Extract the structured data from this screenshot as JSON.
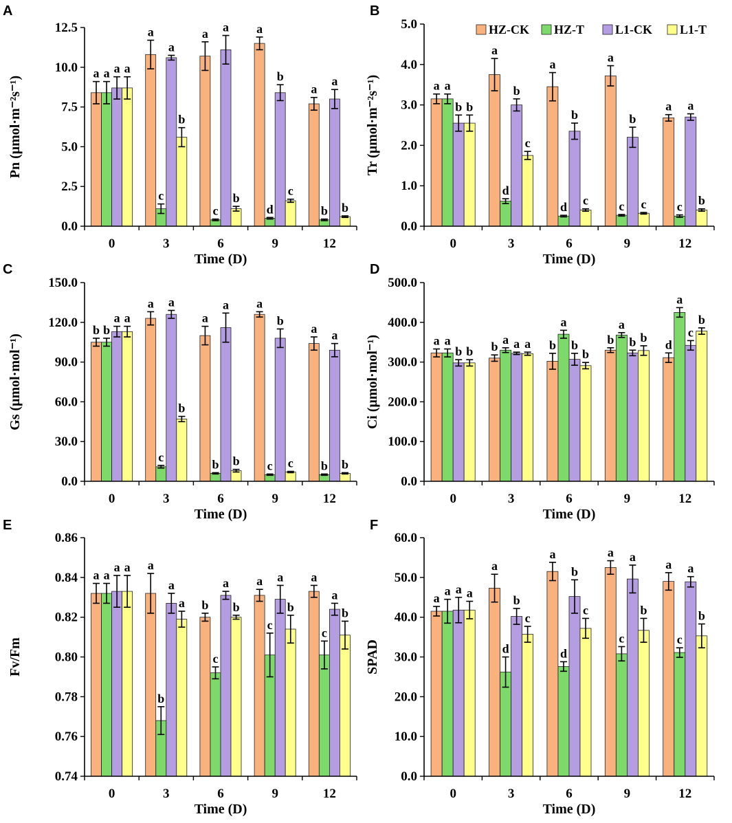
{
  "figure": {
    "legend": [
      {
        "name": "HZ-CK",
        "color": "#F9B27E"
      },
      {
        "name": "HZ-T",
        "color": "#7CD96A"
      },
      {
        "name": "L1-CK",
        "color": "#B49DE0"
      },
      {
        "name": "L1-T",
        "color": "#FFFF8C"
      }
    ]
  },
  "chart_data": [
    {
      "panel": "A",
      "type": "bar",
      "ylabel": "Pn (μmol·m⁻²s⁻¹)",
      "xlabel": "Time (D)",
      "categories": [
        "0",
        "3",
        "6",
        "9",
        "12"
      ],
      "ylim": [
        0,
        12.5
      ],
      "yticks": [
        "0.0",
        "2.5",
        "5.0",
        "7.5",
        "10.0",
        "12.5"
      ],
      "series": [
        {
          "name": "HZ-CK",
          "values": [
            8.4,
            10.8,
            10.7,
            11.5,
            7.7
          ],
          "errors": [
            0.7,
            0.9,
            0.9,
            0.4,
            0.4
          ],
          "letters": [
            "a",
            "a",
            "a",
            "a",
            "a"
          ]
        },
        {
          "name": "HZ-T",
          "values": [
            8.4,
            1.1,
            0.4,
            0.5,
            0.4
          ],
          "errors": [
            0.7,
            0.3,
            0.05,
            0.05,
            0.05
          ],
          "letters": [
            "a",
            "c",
            "c",
            "d",
            "b"
          ]
        },
        {
          "name": "L1-CK",
          "values": [
            8.7,
            10.6,
            11.1,
            8.4,
            8.0
          ],
          "errors": [
            0.7,
            0.15,
            0.9,
            0.5,
            0.6
          ],
          "letters": [
            "a",
            "a",
            "a",
            "b",
            "a"
          ]
        },
        {
          "name": "L1-T",
          "values": [
            8.7,
            5.6,
            1.1,
            1.6,
            0.6
          ],
          "errors": [
            0.7,
            0.6,
            0.15,
            0.1,
            0.05
          ],
          "letters": [
            "a",
            "b",
            "b",
            "c",
            "b"
          ]
        }
      ]
    },
    {
      "panel": "B",
      "type": "bar",
      "ylabel": "Tr (μmol·m⁻²s⁻¹)",
      "xlabel": "Time (D)",
      "categories": [
        "0",
        "3",
        "6",
        "9",
        "12"
      ],
      "ylim": [
        0,
        5.0
      ],
      "yticks": [
        "0.0",
        "1.0",
        "2.0",
        "3.0",
        "4.0",
        "5.0"
      ],
      "series": [
        {
          "name": "HZ-CK",
          "values": [
            3.15,
            3.75,
            3.45,
            3.72,
            2.68
          ],
          "errors": [
            0.12,
            0.4,
            0.35,
            0.25,
            0.08
          ],
          "letters": [
            "a",
            "a",
            "a",
            "a",
            "a"
          ]
        },
        {
          "name": "HZ-T",
          "values": [
            3.15,
            0.62,
            0.25,
            0.27,
            0.25
          ],
          "errors": [
            0.12,
            0.06,
            0.02,
            0.02,
            0.03
          ],
          "letters": [
            "a",
            "d",
            "d",
            "c",
            "c"
          ]
        },
        {
          "name": "L1-CK",
          "values": [
            2.55,
            3.0,
            2.35,
            2.2,
            2.7
          ],
          "errors": [
            0.2,
            0.15,
            0.2,
            0.25,
            0.08
          ],
          "letters": [
            "b",
            "b",
            "b",
            "b",
            "a"
          ]
        },
        {
          "name": "L1-T",
          "values": [
            2.55,
            1.75,
            0.4,
            0.32,
            0.4
          ],
          "errors": [
            0.2,
            0.1,
            0.03,
            0.02,
            0.03
          ],
          "letters": [
            "b",
            "c",
            "c",
            "c",
            "b"
          ]
        }
      ]
    },
    {
      "panel": "C",
      "type": "bar",
      "ylabel": "Gs (μmol·mol⁻¹)",
      "xlabel": "Time (D)",
      "categories": [
        "0",
        "3",
        "6",
        "9",
        "12"
      ],
      "ylim": [
        0,
        150.0
      ],
      "yticks": [
        "0.0",
        "30.0",
        "60.0",
        "90.0",
        "120.0",
        "150.0"
      ],
      "series": [
        {
          "name": "HZ-CK",
          "values": [
            105,
            123,
            110,
            126,
            104
          ],
          "errors": [
            3,
            5,
            7,
            2,
            5
          ],
          "letters": [
            "b",
            "a",
            "a",
            "a",
            "a"
          ]
        },
        {
          "name": "HZ-T",
          "values": [
            105,
            11,
            6,
            5,
            5
          ],
          "errors": [
            3,
            1,
            0.5,
            0.5,
            0.5
          ],
          "letters": [
            "b",
            "c",
            "b",
            "c",
            "b"
          ]
        },
        {
          "name": "L1-CK",
          "values": [
            113,
            126,
            116,
            108,
            99
          ],
          "errors": [
            4,
            3,
            11,
            7,
            5
          ],
          "letters": [
            "a",
            "a",
            "a",
            "b",
            "a"
          ]
        },
        {
          "name": "L1-T",
          "values": [
            113,
            47,
            8,
            7,
            6
          ],
          "errors": [
            4,
            2,
            1,
            0.5,
            0.5
          ],
          "letters": [
            "a",
            "b",
            "b",
            "c",
            "b"
          ]
        }
      ]
    },
    {
      "panel": "D",
      "type": "bar",
      "ylabel": "Ci (μmol·mol⁻¹)",
      "xlabel": "Time (D)",
      "categories": [
        "0",
        "3",
        "6",
        "9",
        "12"
      ],
      "ylim": [
        0,
        500.0
      ],
      "yticks": [
        "0.0",
        "100.0",
        "200.0",
        "300.0",
        "400.0",
        "500.0"
      ],
      "series": [
        {
          "name": "HZ-CK",
          "values": [
            323,
            310,
            302,
            330,
            311
          ],
          "errors": [
            10,
            8,
            20,
            6,
            12
          ],
          "letters": [
            "a",
            "b",
            "b",
            "b",
            "d"
          ]
        },
        {
          "name": "HZ-T",
          "values": [
            323,
            330,
            370,
            368,
            425
          ],
          "errors": [
            10,
            6,
            10,
            6,
            12
          ],
          "letters": [
            "a",
            "a",
            "a",
            "a",
            "a"
          ]
        },
        {
          "name": "L1-CK",
          "values": [
            298,
            322,
            307,
            323,
            342
          ],
          "errors": [
            8,
            3,
            15,
            7,
            12
          ],
          "letters": [
            "b",
            "a",
            "b",
            "b",
            "c"
          ]
        },
        {
          "name": "L1-T",
          "values": [
            298,
            321,
            291,
            329,
            378
          ],
          "errors": [
            8,
            4,
            8,
            12,
            8
          ],
          "letters": [
            "b",
            "a",
            "b",
            "b",
            "b"
          ]
        }
      ]
    },
    {
      "panel": "E",
      "type": "bar",
      "ylabel": "Fv/Fm",
      "xlabel": "Time (D)",
      "categories": [
        "0",
        "3",
        "6",
        "9",
        "12"
      ],
      "ylim": [
        0.74,
        0.86
      ],
      "yticks": [
        "0.74",
        "0.76",
        "0.78",
        "0.80",
        "0.82",
        "0.84",
        "0.86"
      ],
      "series": [
        {
          "name": "HZ-CK",
          "values": [
            0.832,
            0.832,
            0.82,
            0.831,
            0.833
          ],
          "errors": [
            0.005,
            0.01,
            0.002,
            0.003,
            0.003
          ],
          "letters": [
            "a",
            "a",
            "b",
            "a",
            "a"
          ]
        },
        {
          "name": "HZ-T",
          "values": [
            0.832,
            0.768,
            0.792,
            0.801,
            0.801
          ],
          "errors": [
            0.005,
            0.007,
            0.003,
            0.011,
            0.007
          ],
          "letters": [
            "a",
            "b",
            "c",
            "c",
            "c"
          ]
        },
        {
          "name": "L1-CK",
          "values": [
            0.833,
            0.827,
            0.831,
            0.829,
            0.824
          ],
          "errors": [
            0.008,
            0.005,
            0.002,
            0.007,
            0.003
          ],
          "letters": [
            "a",
            "a",
            "a",
            "a",
            "a"
          ]
        },
        {
          "name": "L1-T",
          "values": [
            0.833,
            0.819,
            0.82,
            0.814,
            0.811
          ],
          "errors": [
            0.008,
            0.004,
            0.001,
            0.007,
            0.007
          ],
          "letters": [
            "a",
            "a",
            "b",
            "b",
            "b"
          ]
        }
      ]
    },
    {
      "panel": "F",
      "type": "bar",
      "ylabel": "SPAD",
      "xlabel": "Time (D)",
      "categories": [
        "0",
        "3",
        "6",
        "9",
        "12"
      ],
      "ylim": [
        0,
        60.0
      ],
      "yticks": [
        "0.0",
        "10.0",
        "20.0",
        "30.0",
        "40.0",
        "50.0",
        "60.0"
      ],
      "series": [
        {
          "name": "HZ-CK",
          "values": [
            41.5,
            47.3,
            51.5,
            52.5,
            49.0
          ],
          "errors": [
            1.2,
            3.5,
            2.3,
            1.7,
            2.2
          ],
          "letters": [
            "a",
            "a",
            "a",
            "a",
            "a"
          ]
        },
        {
          "name": "HZ-T",
          "values": [
            41.5,
            26.2,
            27.6,
            30.8,
            31.1
          ],
          "errors": [
            3.0,
            3.8,
            1.2,
            1.8,
            1.2
          ],
          "letters": [
            "a",
            "d",
            "d",
            "c",
            "c"
          ]
        },
        {
          "name": "L1-CK",
          "values": [
            41.8,
            40.2,
            45.2,
            49.6,
            48.9
          ],
          "errors": [
            3.2,
            2.0,
            4.2,
            3.5,
            1.3
          ],
          "letters": [
            "a",
            "b",
            "b",
            "a",
            "a"
          ]
        },
        {
          "name": "L1-T",
          "values": [
            41.8,
            35.7,
            37.2,
            36.7,
            35.3
          ],
          "errors": [
            2.2,
            2.0,
            2.5,
            3.0,
            3.0
          ],
          "letters": [
            "a",
            "c",
            "c",
            "b",
            "b"
          ]
        }
      ]
    }
  ]
}
